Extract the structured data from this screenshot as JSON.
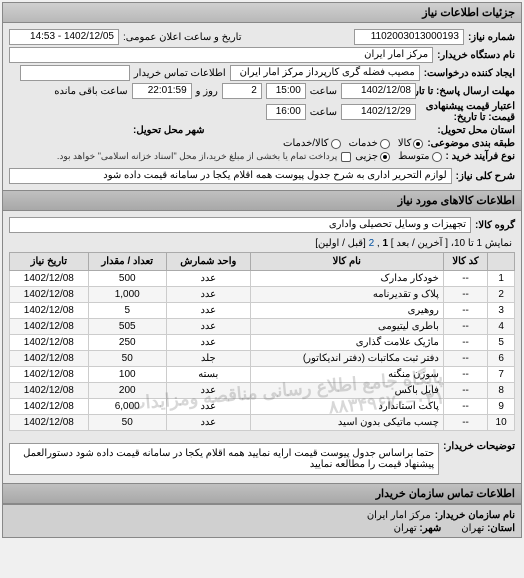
{
  "header": {
    "title": "جزئیات اطلاعات نیاز"
  },
  "info": {
    "reqNoLabel": "شماره نیاز:",
    "reqNo": "1102003013000193",
    "pubDateLabel": "تاریخ و ساعت اعلان عمومی:",
    "pubDate": "1402/12/05 - 14:53",
    "buyerNameLabel": "نام دستگاه خریدار:",
    "buyerName": "مرکز امار ایران",
    "creatorLabel": "ایجاد کننده درخواست:",
    "creator": "مصیب فضله گری کارپرداز مرکز امار ایران",
    "contactLabel": "اطلاعات تماس خریدار",
    "deadlineSendLabel": "مهلت ارسال پاسخ: تا تاریخ:",
    "deadlineSendDate": "1402/12/08",
    "timeLabel": "ساعت",
    "deadlineSendTime": "15:00",
    "dayLabel": "روز و",
    "days": "2",
    "remainLabel": "ساعت باقی مانده",
    "remainTime": "22:01:59",
    "validLabel": "اعتبار قیمت پیشنهادی\nقیمت: تا تاریخ:",
    "validDate": "1402/12/29",
    "validTime": "16:00",
    "deliverProvLabel": "استان محل تحویل:",
    "deliverCityLabel": "شهر محل تحویل:",
    "packLabel": "طبقه بندی موضوعی:",
    "packOptions": {
      "kala": "کالا",
      "khadamat": "خدمات",
      "kalaKhadamat": "کالا/خدمات"
    },
    "buyTypeLabel": "نوع فرآیند خرید :",
    "buyOptions": {
      "motavaset": "متوسط",
      "jozi": "جزیی"
    },
    "buyNote": "پرداخت تمام یا بخشی از مبلغ خرید،از محل \"اسناد خزانه اسلامی\" خواهد بود.",
    "descLabel": "شرح کلی نیاز:",
    "desc": "لوازم التحریر اداری به شرح جدول پیوست همه اقلام یکجا در سامانه قیمت داده شود"
  },
  "goods": {
    "header": "اطلاعات کالاهای مورد نیاز",
    "groupLabel": "گروه کالا:",
    "group": "تجهیزات و وسایل تحصیلی واداری",
    "pagination": {
      "text": "نمایش 1 تا 10، [ آخرین / بعد ] ",
      "p1": "1",
      "p2": "2",
      "suffix": " [قبل / اولین]"
    },
    "columns": [
      "",
      "کد کالا",
      "نام کالا",
      "واحد شمارش",
      "تعداد / مقدار",
      "تاریخ نیاز"
    ],
    "rows": [
      [
        "1",
        "--",
        "خودکار مدارک",
        "عدد",
        "500",
        "1402/12/08"
      ],
      [
        "2",
        "--",
        "پلاک و تقدیرنامه",
        "عدد",
        "1,000",
        "1402/12/08"
      ],
      [
        "3",
        "--",
        "روهیری",
        "عدد",
        "5",
        "1402/12/08"
      ],
      [
        "4",
        "--",
        "باطری لیتیومی",
        "عدد",
        "505",
        "1402/12/08"
      ],
      [
        "5",
        "--",
        "ماژیک علامت گذاری",
        "عدد",
        "250",
        "1402/12/08"
      ],
      [
        "6",
        "--",
        "دفتر ثبت مکاتبات (دفتر اندیکاتور)",
        "جلد",
        "50",
        "1402/12/08"
      ],
      [
        "7",
        "--",
        "سوزن منگنه",
        "بسته",
        "100",
        "1402/12/08"
      ],
      [
        "8",
        "--",
        "فایل باکس",
        "عدد",
        "200",
        "1402/12/08"
      ],
      [
        "9",
        "--",
        "پاکت استاندارد",
        "عدد",
        "6,000",
        "1402/12/08"
      ],
      [
        "10",
        "--",
        "چسب ماتیکی بدون اسید",
        "عدد",
        "50",
        "1402/12/08"
      ]
    ]
  },
  "buyerDesc": {
    "label": "توضیحات خریدار:",
    "text": "حتما براساس جدول پیوست قیمت ارایه نمایید همه اقلام یکجا در سامانه قیمت داده شود دستورالعمل پیشنهاد قیمت را مطالعه نمایید"
  },
  "footer": {
    "header": "اطلاعات تماس سازمان خریدار",
    "orgLabel": "نام سازمان خریدار:",
    "org": "مرکز امار ایران",
    "provLabel": "استان:",
    "prov": "تهران",
    "cityLabel": "شهر:",
    "city": "تهران"
  },
  "watermark": "پایگاه جامع اطلاع رسانی مناقصه ومزایدات\n۰۲۱–۸۸۳۴۹۶۷۰"
}
